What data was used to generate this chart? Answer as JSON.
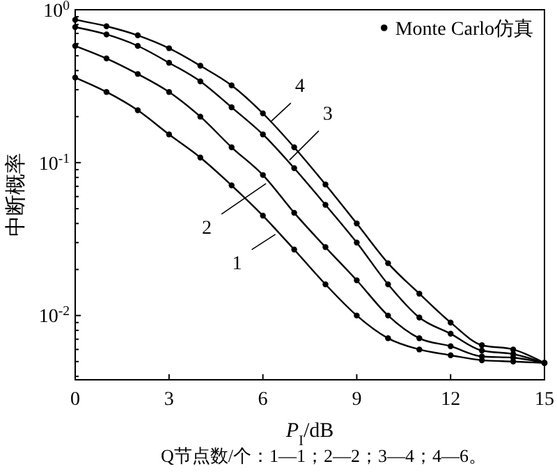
{
  "chart_data": {
    "type": "line",
    "xlabel": "P$_{I}$/dB",
    "ylabel": "中断概率",
    "log": "y",
    "xlim": [
      0,
      15
    ],
    "xticks": [
      0,
      3,
      6,
      9,
      12,
      15
    ],
    "ylim": [
      0.0038,
      1
    ],
    "yticks": [
      {
        "value": 1,
        "label": "10$^{0}$"
      },
      {
        "value": 0.1,
        "label": "10$^{-1}$"
      },
      {
        "value": 0.01,
        "label": "10$^{-2}$"
      },
      {
        "value": 0.9,
        "label": null
      },
      {
        "value": 0.8,
        "label": null
      },
      {
        "value": 0.7,
        "label": null
      },
      {
        "value": 0.6,
        "label": null
      },
      {
        "value": 0.5,
        "label": null
      },
      {
        "value": 0.4,
        "label": null
      },
      {
        "value": 0.3,
        "label": null
      },
      {
        "value": 0.2,
        "label": null
      },
      {
        "value": 0.09,
        "label": null
      },
      {
        "value": 0.08,
        "label": null
      },
      {
        "value": 0.07,
        "label": null
      },
      {
        "value": 0.06,
        "label": null
      },
      {
        "value": 0.05,
        "label": null
      },
      {
        "value": 0.04,
        "label": null
      },
      {
        "value": 0.03,
        "label": null
      },
      {
        "value": 0.02,
        "label": null
      },
      {
        "value": 0.009,
        "label": null
      },
      {
        "value": 0.008,
        "label": null
      },
      {
        "value": 0.007,
        "label": null
      },
      {
        "value": 0.006,
        "label": null
      },
      {
        "value": 0.005,
        "label": null
      },
      {
        "value": 0.004,
        "label": null
      }
    ],
    "x": [
      0,
      1,
      2,
      3,
      4,
      5,
      6,
      7,
      8,
      9,
      10,
      11,
      12,
      13,
      14,
      15
    ],
    "marker": "none",
    "line_style": "solid",
    "grid": false,
    "legend": "top right",
    "series": [
      {
        "color": "#000000",
        "values": [
          0.36,
          0.29,
          0.22,
          0.153,
          0.108,
          0.071,
          0.045,
          0.027,
          0.016,
          0.01,
          0.0071,
          0.006,
          0.0055,
          0.0051,
          0.005,
          0.0049
        ]
      },
      {
        "color": "#000000",
        "values": [
          0.58,
          0.48,
          0.38,
          0.29,
          0.2,
          0.126,
          0.083,
          0.047,
          0.028,
          0.017,
          0.01,
          0.0071,
          0.0063,
          0.0054,
          0.0053,
          0.0049
        ]
      },
      {
        "color": "#000000",
        "values": [
          0.77,
          0.69,
          0.58,
          0.45,
          0.34,
          0.23,
          0.153,
          0.092,
          0.053,
          0.03,
          0.016,
          0.0097,
          0.0076,
          0.0059,
          0.0056,
          0.0049
        ]
      },
      {
        "color": "#000000",
        "values": [
          0.86,
          0.78,
          0.68,
          0.56,
          0.43,
          0.32,
          0.21,
          0.126,
          0.072,
          0.04,
          0.022,
          0.0139,
          0.009,
          0.0064,
          0.006,
          0.0049
        ]
      },
      {
        "type": "scatter",
        "name": "Monte Carlo仿真",
        "color": "#000000",
        "marker": "circle",
        "x": [
          0,
          1,
          2,
          3,
          4,
          5,
          6,
          7,
          8,
          9,
          10,
          11,
          12,
          13,
          14,
          15,
          0,
          1,
          2,
          3,
          4,
          5,
          6,
          7,
          8,
          9,
          10,
          11,
          12,
          13,
          14,
          15,
          0,
          1,
          2,
          3,
          4,
          5,
          6,
          7,
          8,
          9,
          10,
          11,
          12,
          13,
          14,
          15,
          0,
          1,
          2,
          3,
          4,
          5,
          6,
          7,
          8,
          9,
          10,
          11,
          12,
          13,
          14,
          15
        ],
        "values": [
          0.36,
          0.29,
          0.22,
          0.153,
          0.108,
          0.071,
          0.045,
          0.027,
          0.016,
          0.01,
          0.0071,
          0.006,
          0.0055,
          0.0051,
          0.005,
          0.0049,
          0.58,
          0.48,
          0.38,
          0.29,
          0.2,
          0.126,
          0.083,
          0.047,
          0.028,
          0.017,
          0.01,
          0.0071,
          0.0063,
          0.0054,
          0.0053,
          0.0049,
          0.77,
          0.69,
          0.58,
          0.45,
          0.34,
          0.23,
          0.153,
          0.092,
          0.053,
          0.03,
          0.016,
          0.0097,
          0.0076,
          0.0059,
          0.0056,
          0.0049,
          0.86,
          0.78,
          0.68,
          0.56,
          0.43,
          0.32,
          0.21,
          0.126,
          0.072,
          0.04,
          0.022,
          0.0139,
          0.009,
          0.0064,
          0.006,
          0.0049
        ]
      }
    ],
    "annotations": [
      {
        "text": "1",
        "x": 6.4,
        "y": 0.034
      },
      {
        "text": "2",
        "x": 6.1,
        "y": 0.073
      },
      {
        "text": "3",
        "x": 6.85,
        "y": 0.104
      },
      {
        "text": "4",
        "x": 6.27,
        "y": 0.187
      },
      "Q节点数/个：1—1；2—2；3—4；4—6。"
    ]
  }
}
